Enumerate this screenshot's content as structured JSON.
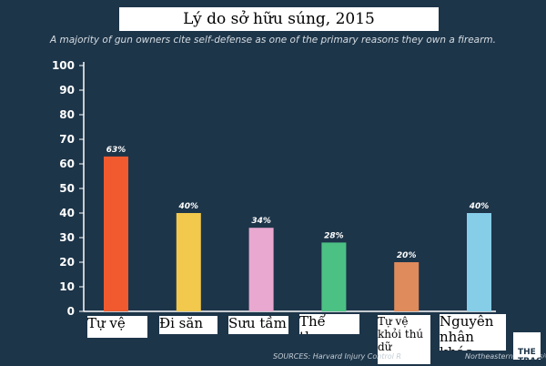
{
  "title": "Lý do sở hữu súng, 2015",
  "subtitle": "A majority of gun owners cite self-defense as one of the primary reasons they own a firearm.",
  "source_left": "SOURCES: Harvard Injury Control R",
  "source_right": "Northeastern University",
  "brand": "THE TRACE",
  "chart_data": {
    "type": "bar",
    "categories": [
      "Tự vệ",
      "Đi săn",
      "Sưu tầm",
      "Thể thao",
      "Tự vệ khỏi thú dữ",
      "Nguyên nhân khác"
    ],
    "values": [
      63,
      40,
      34,
      28,
      20,
      40
    ],
    "value_labels": [
      "63%",
      "40%",
      "34%",
      "28%",
      "20%",
      "40%"
    ],
    "colors": [
      "#f05a2e",
      "#f2c94c",
      "#e8a8cf",
      "#4cc184",
      "#e08b5c",
      "#86cde8"
    ],
    "yticks": [
      "0",
      "10",
      "20",
      "30",
      "40",
      "50",
      "60",
      "70",
      "80",
      "90",
      "100"
    ],
    "ylim": [
      0,
      100
    ],
    "grid": false,
    "title": "Lý do sở hữu súng, 2015",
    "xlabel": "",
    "ylabel": ""
  }
}
